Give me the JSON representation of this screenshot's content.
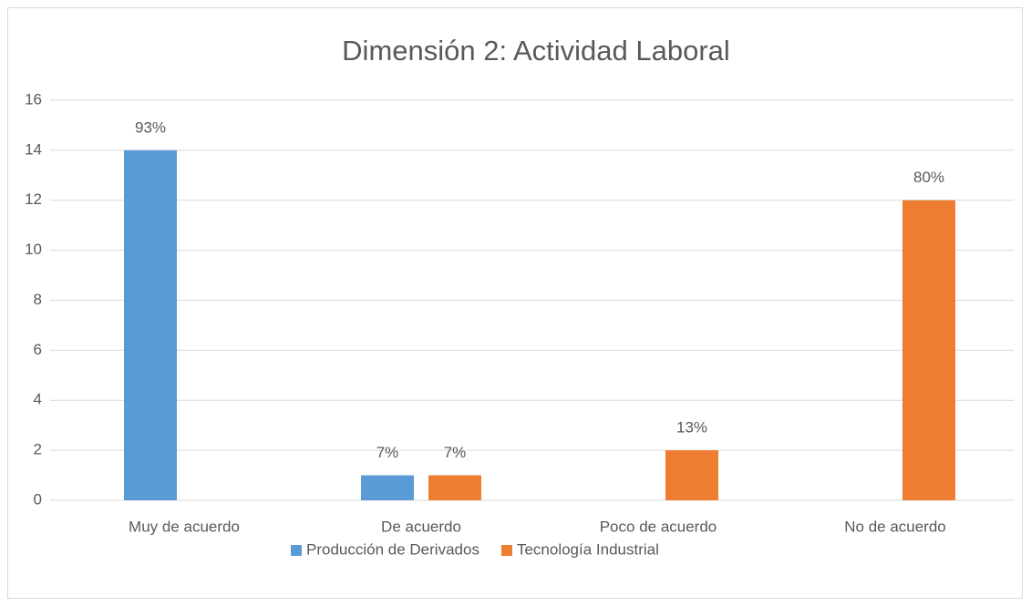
{
  "chart_data": {
    "type": "bar",
    "title": "Dimensión 2: Actividad Laboral",
    "categories": [
      "Muy de acuerdo",
      "De acuerdo",
      "Poco de acuerdo",
      "No de acuerdo"
    ],
    "series": [
      {
        "name": "Producción de Derivados",
        "color": "#5b9bd5",
        "values": [
          14,
          1,
          0,
          0
        ],
        "percent_labels": [
          "93%",
          "7%",
          null,
          null
        ]
      },
      {
        "name": "Tecnología Industrial",
        "color": "#ed7d31",
        "values": [
          0,
          1,
          2,
          12
        ],
        "percent_labels": [
          null,
          "7%",
          "13%",
          "80%"
        ]
      }
    ],
    "ylim": [
      0,
      16
    ],
    "yticks": [
      0,
      2,
      4,
      6,
      8,
      10,
      12,
      14,
      16
    ],
    "grid": true,
    "legend": "bottom"
  }
}
